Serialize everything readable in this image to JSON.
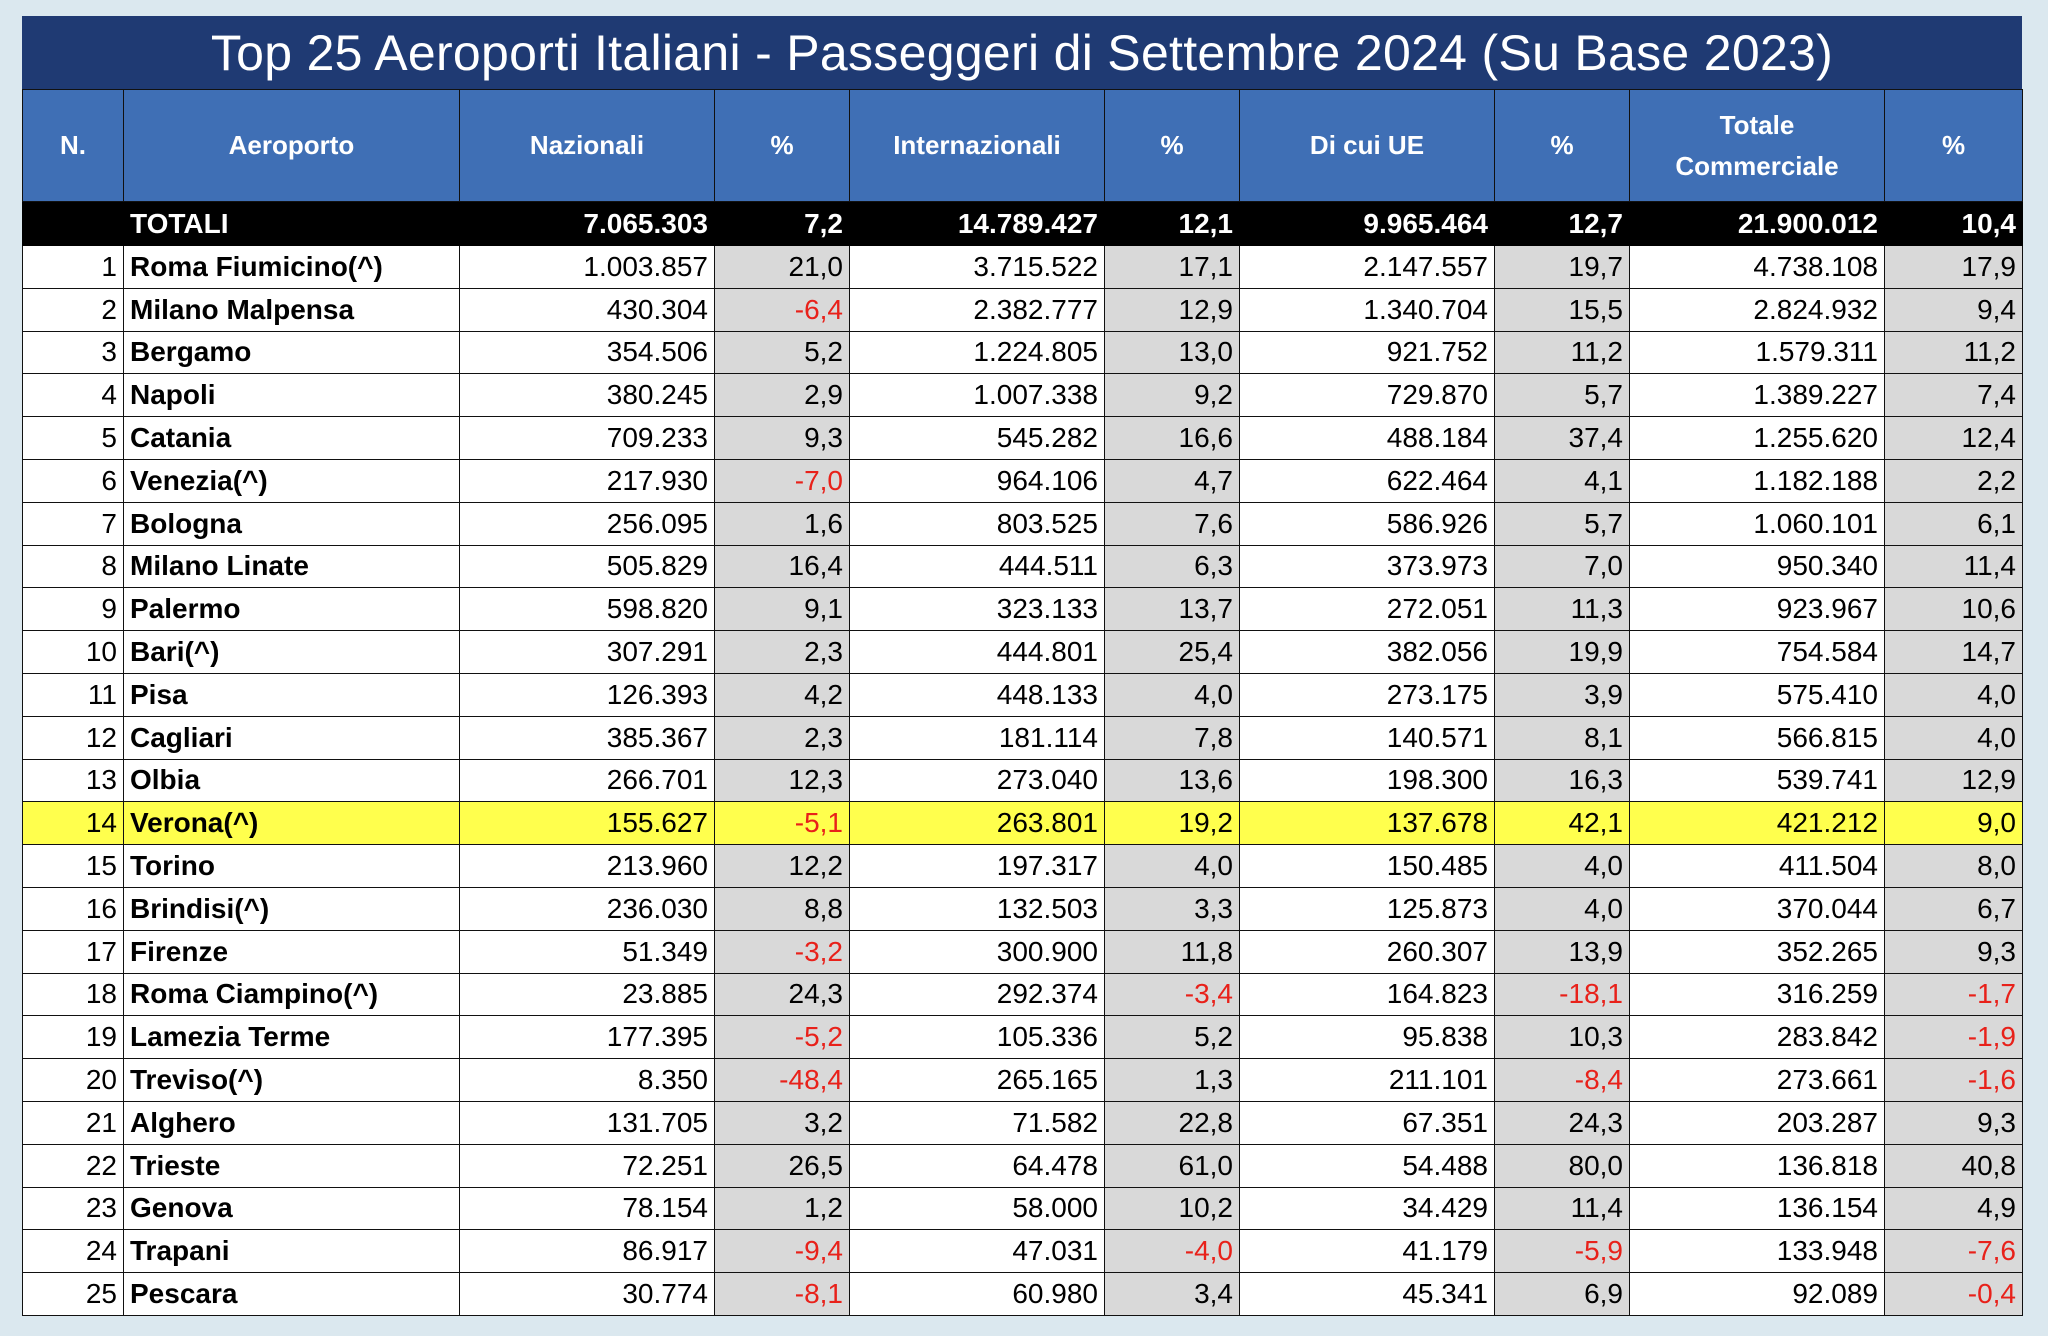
{
  "title": "Top 25 Aeroporti Italiani - Passeggeri di Settembre 2024 (Su Base 2023)",
  "headers": [
    "N.",
    "Aeroporto",
    "Nazionali",
    "%",
    "Internazionali",
    "%",
    "Di cui UE",
    "%",
    "Totale Commerciale",
    "%"
  ],
  "totals": {
    "label": "TOTALI",
    "naz": "7.065.303",
    "naz_pct": "7,2",
    "int": "14.789.427",
    "int_pct": "12,1",
    "ue": "9.965.464",
    "ue_pct": "12,7",
    "tot": "21.900.012",
    "tot_pct": "10,4"
  },
  "highlight_color": "#ffff4d",
  "negative_color": "#e8211a",
  "rows": [
    {
      "n": "1",
      "name": "Roma Fiumicino(^)",
      "naz": "1.003.857",
      "naz_pct": "21,0",
      "int": "3.715.522",
      "int_pct": "17,1",
      "ue": "2.147.557",
      "ue_pct": "19,7",
      "tot": "4.738.108",
      "tot_pct": "17,9"
    },
    {
      "n": "2",
      "name": "Milano Malpensa",
      "naz": "430.304",
      "naz_pct": "-6,4",
      "int": "2.382.777",
      "int_pct": "12,9",
      "ue": "1.340.704",
      "ue_pct": "15,5",
      "tot": "2.824.932",
      "tot_pct": "9,4"
    },
    {
      "n": "3",
      "name": "Bergamo",
      "naz": "354.506",
      "naz_pct": "5,2",
      "int": "1.224.805",
      "int_pct": "13,0",
      "ue": "921.752",
      "ue_pct": "11,2",
      "tot": "1.579.311",
      "tot_pct": "11,2"
    },
    {
      "n": "4",
      "name": "Napoli",
      "naz": "380.245",
      "naz_pct": "2,9",
      "int": "1.007.338",
      "int_pct": "9,2",
      "ue": "729.870",
      "ue_pct": "5,7",
      "tot": "1.389.227",
      "tot_pct": "7,4"
    },
    {
      "n": "5",
      "name": "Catania",
      "naz": "709.233",
      "naz_pct": "9,3",
      "int": "545.282",
      "int_pct": "16,6",
      "ue": "488.184",
      "ue_pct": "37,4",
      "tot": "1.255.620",
      "tot_pct": "12,4"
    },
    {
      "n": "6",
      "name": "Venezia(^)",
      "naz": "217.930",
      "naz_pct": "-7,0",
      "int": "964.106",
      "int_pct": "4,7",
      "ue": "622.464",
      "ue_pct": "4,1",
      "tot": "1.182.188",
      "tot_pct": "2,2"
    },
    {
      "n": "7",
      "name": "Bologna",
      "naz": "256.095",
      "naz_pct": "1,6",
      "int": "803.525",
      "int_pct": "7,6",
      "ue": "586.926",
      "ue_pct": "5,7",
      "tot": "1.060.101",
      "tot_pct": "6,1"
    },
    {
      "n": "8",
      "name": "Milano Linate",
      "naz": "505.829",
      "naz_pct": "16,4",
      "int": "444.511",
      "int_pct": "6,3",
      "ue": "373.973",
      "ue_pct": "7,0",
      "tot": "950.340",
      "tot_pct": "11,4"
    },
    {
      "n": "9",
      "name": "Palermo",
      "naz": "598.820",
      "naz_pct": "9,1",
      "int": "323.133",
      "int_pct": "13,7",
      "ue": "272.051",
      "ue_pct": "11,3",
      "tot": "923.967",
      "tot_pct": "10,6"
    },
    {
      "n": "10",
      "name": "Bari(^)",
      "naz": "307.291",
      "naz_pct": "2,3",
      "int": "444.801",
      "int_pct": "25,4",
      "ue": "382.056",
      "ue_pct": "19,9",
      "tot": "754.584",
      "tot_pct": "14,7"
    },
    {
      "n": "11",
      "name": "Pisa",
      "naz": "126.393",
      "naz_pct": "4,2",
      "int": "448.133",
      "int_pct": "4,0",
      "ue": "273.175",
      "ue_pct": "3,9",
      "tot": "575.410",
      "tot_pct": "4,0"
    },
    {
      "n": "12",
      "name": "Cagliari",
      "naz": "385.367",
      "naz_pct": "2,3",
      "int": "181.114",
      "int_pct": "7,8",
      "ue": "140.571",
      "ue_pct": "8,1",
      "tot": "566.815",
      "tot_pct": "4,0"
    },
    {
      "n": "13",
      "name": "Olbia",
      "naz": "266.701",
      "naz_pct": "12,3",
      "int": "273.040",
      "int_pct": "13,6",
      "ue": "198.300",
      "ue_pct": "16,3",
      "tot": "539.741",
      "tot_pct": "12,9"
    },
    {
      "n": "14",
      "name": "Verona(^)",
      "naz": "155.627",
      "naz_pct": "-5,1",
      "int": "263.801",
      "int_pct": "19,2",
      "ue": "137.678",
      "ue_pct": "42,1",
      "tot": "421.212",
      "tot_pct": "9,0",
      "highlight": true
    },
    {
      "n": "15",
      "name": "Torino",
      "naz": "213.960",
      "naz_pct": "12,2",
      "int": "197.317",
      "int_pct": "4,0",
      "ue": "150.485",
      "ue_pct": "4,0",
      "tot": "411.504",
      "tot_pct": "8,0"
    },
    {
      "n": "16",
      "name": "Brindisi(^)",
      "naz": "236.030",
      "naz_pct": "8,8",
      "int": "132.503",
      "int_pct": "3,3",
      "ue": "125.873",
      "ue_pct": "4,0",
      "tot": "370.044",
      "tot_pct": "6,7"
    },
    {
      "n": "17",
      "name": "Firenze",
      "naz": "51.349",
      "naz_pct": "-3,2",
      "int": "300.900",
      "int_pct": "11,8",
      "ue": "260.307",
      "ue_pct": "13,9",
      "tot": "352.265",
      "tot_pct": "9,3"
    },
    {
      "n": "18",
      "name": "Roma Ciampino(^)",
      "naz": "23.885",
      "naz_pct": "24,3",
      "int": "292.374",
      "int_pct": "-3,4",
      "ue": "164.823",
      "ue_pct": "-18,1",
      "tot": "316.259",
      "tot_pct": "-1,7"
    },
    {
      "n": "19",
      "name": "Lamezia Terme",
      "naz": "177.395",
      "naz_pct": "-5,2",
      "int": "105.336",
      "int_pct": "5,2",
      "ue": "95.838",
      "ue_pct": "10,3",
      "tot": "283.842",
      "tot_pct": "-1,9"
    },
    {
      "n": "20",
      "name": "Treviso(^)",
      "naz": "8.350",
      "naz_pct": "-48,4",
      "int": "265.165",
      "int_pct": "1,3",
      "ue": "211.101",
      "ue_pct": "-8,4",
      "tot": "273.661",
      "tot_pct": "-1,6"
    },
    {
      "n": "21",
      "name": "Alghero",
      "naz": "131.705",
      "naz_pct": "3,2",
      "int": "71.582",
      "int_pct": "22,8",
      "ue": "67.351",
      "ue_pct": "24,3",
      "tot": "203.287",
      "tot_pct": "9,3"
    },
    {
      "n": "22",
      "name": "Trieste",
      "naz": "72.251",
      "naz_pct": "26,5",
      "int": "64.478",
      "int_pct": "61,0",
      "ue": "54.488",
      "ue_pct": "80,0",
      "tot": "136.818",
      "tot_pct": "40,8"
    },
    {
      "n": "23",
      "name": "Genova",
      "naz": "78.154",
      "naz_pct": "1,2",
      "int": "58.000",
      "int_pct": "10,2",
      "ue": "34.429",
      "ue_pct": "11,4",
      "tot": "136.154",
      "tot_pct": "4,9"
    },
    {
      "n": "24",
      "name": "Trapani",
      "naz": "86.917",
      "naz_pct": "-9,4",
      "int": "47.031",
      "int_pct": "-4,0",
      "ue": "41.179",
      "ue_pct": "-5,9",
      "tot": "133.948",
      "tot_pct": "-7,6"
    },
    {
      "n": "25",
      "name": "Pescara",
      "naz": "30.774",
      "naz_pct": "-8,1",
      "int": "60.980",
      "int_pct": "3,4",
      "ue": "45.341",
      "ue_pct": "6,9",
      "tot": "92.089",
      "tot_pct": "-0,4"
    }
  ]
}
